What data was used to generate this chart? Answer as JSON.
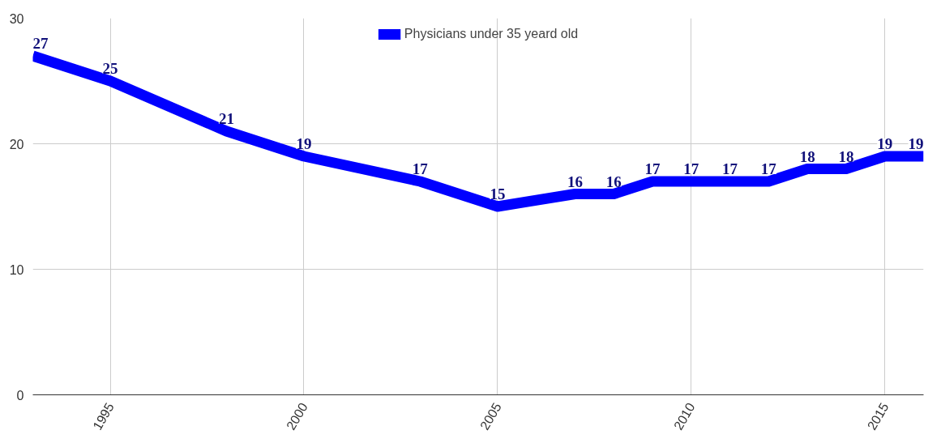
{
  "chart_data": {
    "type": "line",
    "x": [
      1993,
      1995,
      1998,
      2000,
      2003,
      2005,
      2007,
      2008,
      2009,
      2010,
      2011,
      2012,
      2013,
      2014,
      2015,
      2016
    ],
    "series": [
      {
        "name": "Physicians under 35 yeard old",
        "color": "#0000ff",
        "values": [
          27,
          25,
          21,
          19,
          17,
          15,
          16,
          16,
          17,
          17,
          17,
          17,
          18,
          18,
          19,
          19
        ]
      }
    ],
    "xlim": [
      1993,
      2016
    ],
    "xticks": [
      1995,
      2000,
      2005,
      2010,
      2015
    ],
    "ylim": [
      0,
      30
    ],
    "yticks": [
      0,
      10,
      20,
      30
    ],
    "grid": true,
    "legend": "top",
    "data_labels": true,
    "marker": "none",
    "line_style": "solid"
  }
}
